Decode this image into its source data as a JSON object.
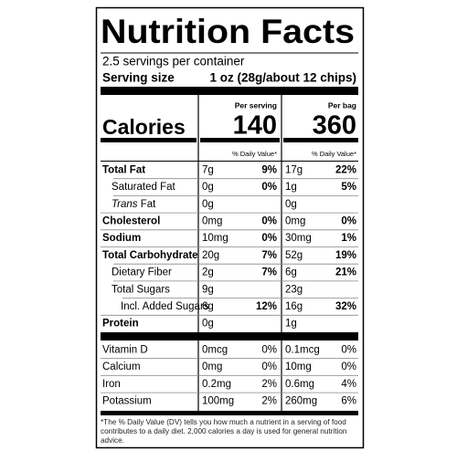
{
  "label": {
    "title": "Nutrition Facts",
    "servings": "2.5 servings per container",
    "serving_size_label": "Serving size",
    "serving_size_value": "1 oz (28g/about 12 chips)",
    "calories_label": "Calories",
    "dv_header": "% Daily Value*",
    "columns": [
      {
        "header": "Per serving",
        "calories": "140"
      },
      {
        "header": "Per bag",
        "calories": "360"
      }
    ],
    "nutrients": [
      {
        "name": "Total Fat",
        "bold": true,
        "indent": 0,
        "serving": "7g",
        "serving_dv": "9%",
        "bag": "17g",
        "bag_dv": "22%"
      },
      {
        "name": "Saturated Fat",
        "bold": false,
        "indent": 1,
        "serving": "0g",
        "serving_dv": "0%",
        "bag": "1g",
        "bag_dv": "5%"
      },
      {
        "name_italic": "Trans",
        "name": "Fat",
        "bold": false,
        "indent": 1,
        "serving": "0g",
        "bag": "0g"
      },
      {
        "name": "Cholesterol",
        "bold": true,
        "indent": 0,
        "serving": "0mg",
        "serving_dv": "0%",
        "bag": "0mg",
        "bag_dv": "0%"
      },
      {
        "name": "Sodium",
        "bold": true,
        "indent": 0,
        "serving": "10mg",
        "serving_dv": "0%",
        "bag": "30mg",
        "bag_dv": "1%"
      },
      {
        "name": "Total Carbohydrate",
        "bold": true,
        "indent": 0,
        "serving": "20g",
        "serving_dv": "7%",
        "bag": "52g",
        "bag_dv": "19%"
      },
      {
        "name": "Dietary Fiber",
        "bold": false,
        "indent": 1,
        "serving": "2g",
        "serving_dv": "7%",
        "bag": "6g",
        "bag_dv": "21%"
      },
      {
        "name": "Total Sugars",
        "bold": false,
        "indent": 1,
        "serving": "9g",
        "bag": "23g"
      },
      {
        "name": "Incl. Added Sugars",
        "bold": false,
        "indent": 2,
        "serving": "6g",
        "serving_dv": "12%",
        "bag": "16g",
        "bag_dv": "32%"
      },
      {
        "name": "Protein",
        "bold": true,
        "indent": 0,
        "serving": "0g",
        "bag": "1g"
      }
    ],
    "vitamins": [
      {
        "name": "Vitamin D",
        "serving": "0mcg",
        "serving_dv": "0%",
        "bag": "0.1mcg",
        "bag_dv": "0%"
      },
      {
        "name": "Calcium",
        "serving": "0mg",
        "serving_dv": "0%",
        "bag": "10mg",
        "bag_dv": "0%"
      },
      {
        "name": "Iron",
        "serving": "0.2mg",
        "serving_dv": "2%",
        "bag": "0.6mg",
        "bag_dv": "4%"
      },
      {
        "name": "Potassium",
        "serving": "100mg",
        "serving_dv": "2%",
        "bag": "260mg",
        "bag_dv": "6%"
      }
    ],
    "footnote": "*The % Daily Value (DV) tells you how much a nutrient in a serving of food contributes to a daily diet. 2,000 calories a day is used for general nutrition advice."
  }
}
